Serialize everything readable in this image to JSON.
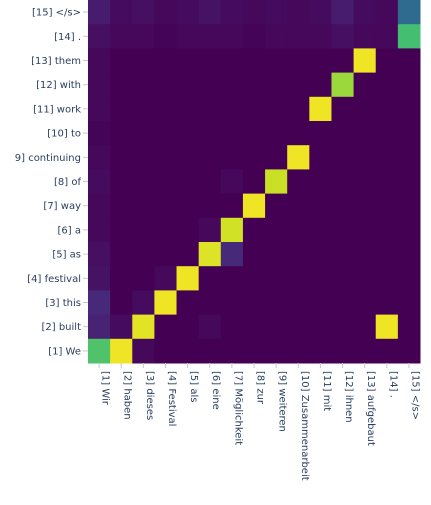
{
  "chart_data": {
    "type": "heatmap",
    "title": "",
    "xlabel": "",
    "ylabel": "",
    "colorscale": "viridis",
    "value_range": [
      0,
      1
    ],
    "x_labels": [
      "[1] Wir",
      "[2] haben",
      "[3] dieses",
      "[4] Festival",
      "[5] als",
      "[6] eine",
      "[7] Möglichkeit",
      "[8] zur",
      "[9] weiteren",
      "[10] Zusammenarbeit",
      "[11] mit",
      "[12] ihnen",
      "[13] aufgebaut",
      "[14] .",
      "[15] </s>"
    ],
    "y_labels_top_to_bottom": [
      "[15] </s>",
      "[14] .",
      "[13] them",
      "[12] with",
      "[11] work",
      "[10] to",
      "9] continuing",
      "[8] of",
      "[7] way",
      "[6] a",
      "[5] as",
      "[4] festival",
      "[3] this",
      "[2] built",
      "[1] We"
    ],
    "values": [
      [
        0.08,
        0.03,
        0.04,
        0.02,
        0.03,
        0.05,
        0.03,
        0.02,
        0.03,
        0.02,
        0.03,
        0.08,
        0.03,
        0.02,
        0.35
      ],
      [
        0.04,
        0.02,
        0.02,
        0.01,
        0.02,
        0.02,
        0.02,
        0.01,
        0.02,
        0.02,
        0.02,
        0.04,
        0.02,
        0.02,
        0.7
      ],
      [
        0.02,
        0.0,
        0.0,
        0.0,
        0.0,
        0.0,
        0.0,
        0.0,
        0.0,
        0.0,
        0.0,
        0.0,
        0.98,
        0.0,
        0.0
      ],
      [
        0.02,
        0.0,
        0.0,
        0.0,
        0.0,
        0.0,
        0.0,
        0.0,
        0.0,
        0.0,
        0.0,
        0.85,
        0.0,
        0.0,
        0.0
      ],
      [
        0.02,
        0.0,
        0.0,
        0.0,
        0.0,
        0.0,
        0.0,
        0.0,
        0.0,
        0.0,
        0.98,
        0.0,
        0.0,
        0.0,
        0.0
      ],
      [
        0.01,
        0.0,
        0.0,
        0.0,
        0.0,
        0.0,
        0.0,
        0.0,
        0.0,
        0.0,
        0.0,
        0.0,
        0.0,
        0.0,
        0.0
      ],
      [
        0.02,
        0.0,
        0.0,
        0.0,
        0.0,
        0.0,
        0.0,
        0.0,
        0.0,
        0.98,
        0.0,
        0.0,
        0.0,
        0.0,
        0.0
      ],
      [
        0.03,
        0.0,
        0.0,
        0.0,
        0.0,
        0.0,
        0.02,
        0.0,
        0.92,
        0.0,
        0.0,
        0.0,
        0.0,
        0.0,
        0.0
      ],
      [
        0.02,
        0.0,
        0.0,
        0.0,
        0.0,
        0.0,
        0.0,
        0.98,
        0.0,
        0.0,
        0.0,
        0.0,
        0.0,
        0.0,
        0.0
      ],
      [
        0.02,
        0.0,
        0.0,
        0.0,
        0.0,
        0.02,
        0.93,
        0.0,
        0.0,
        0.0,
        0.0,
        0.0,
        0.0,
        0.0,
        0.0
      ],
      [
        0.04,
        0.0,
        0.0,
        0.0,
        0.0,
        0.95,
        0.12,
        0.0,
        0.0,
        0.0,
        0.0,
        0.0,
        0.0,
        0.0,
        0.0
      ],
      [
        0.05,
        0.0,
        0.0,
        0.02,
        0.98,
        0.0,
        0.0,
        0.0,
        0.0,
        0.0,
        0.0,
        0.0,
        0.0,
        0.0,
        0.0
      ],
      [
        0.12,
        0.0,
        0.03,
        0.98,
        0.0,
        0.0,
        0.0,
        0.0,
        0.0,
        0.0,
        0.0,
        0.0,
        0.0,
        0.0,
        0.0
      ],
      [
        0.1,
        0.03,
        0.96,
        0.0,
        0.0,
        0.02,
        0.0,
        0.0,
        0.0,
        0.0,
        0.0,
        0.0,
        0.0,
        0.98,
        0.0
      ],
      [
        0.72,
        0.98,
        0.02,
        0.0,
        0.0,
        0.0,
        0.0,
        0.0,
        0.0,
        0.0,
        0.0,
        0.0,
        0.0,
        0.0,
        0.0
      ]
    ]
  }
}
